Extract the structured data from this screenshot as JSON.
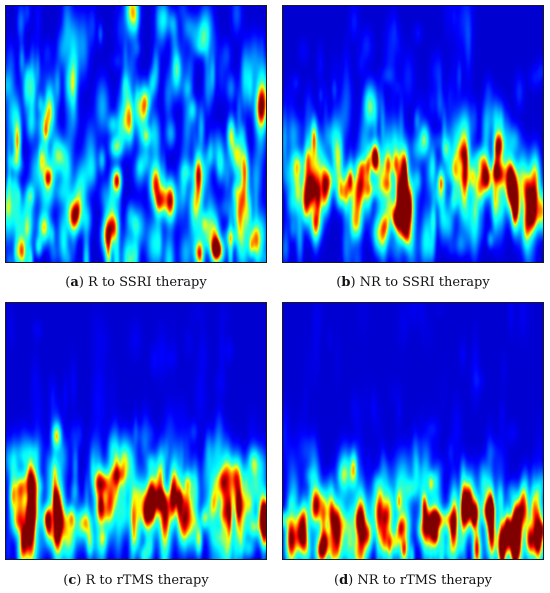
{
  "panels": [
    {
      "id": "a",
      "label_letter": "a",
      "caption_text": "R to SSRI therapy",
      "pattern": "scattered"
    },
    {
      "id": "b",
      "label_letter": "b",
      "caption_text": "NR to SSRI therapy",
      "pattern": "mid-band"
    },
    {
      "id": "c",
      "label_letter": "c",
      "caption_text": "R to rTMS therapy",
      "pattern": "lower-band"
    },
    {
      "id": "d",
      "label_letter": "d",
      "caption_text": "NR to rTMS therapy",
      "pattern": "bottom-band"
    }
  ],
  "colormap": "jet"
}
